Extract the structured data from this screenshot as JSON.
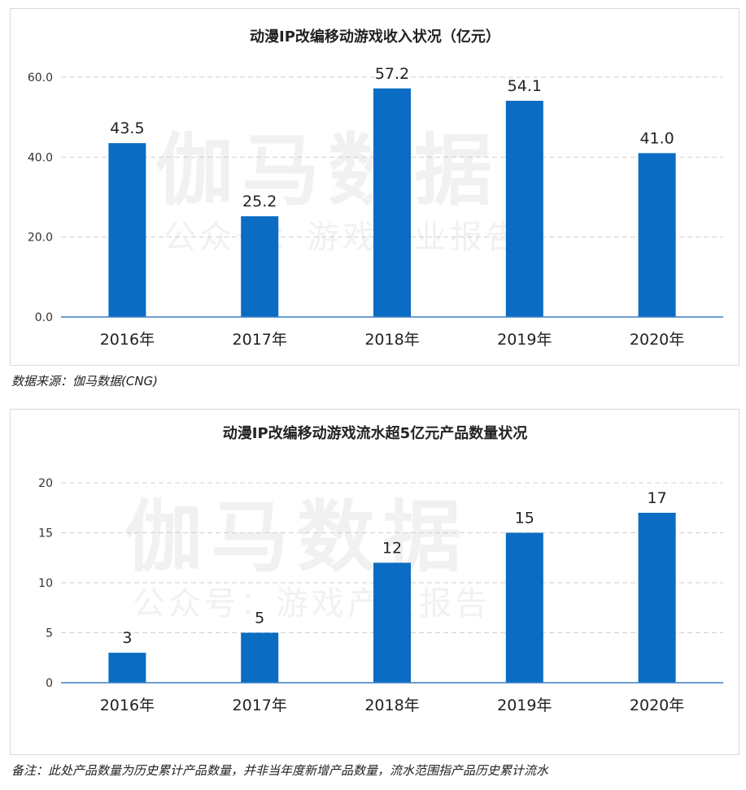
{
  "charts": {
    "c1": {
      "title": "动漫IP改编移动游戏收入状况（亿元）",
      "watermark_main": "伽马数据",
      "watermark_sub": "公众号：游戏产业报告",
      "bar_color": "#0a6cc2"
    },
    "c2": {
      "title": "动漫IP改编移动游戏流水超5亿元产品数量状况",
      "watermark_main": "伽马数据",
      "watermark_sub": "公众号：游戏产业报告",
      "bar_color": "#0a6cc2"
    }
  },
  "notes": {
    "source": "数据来源：伽马数据(CNG)",
    "remark": "备注：此处产品数量为历史累计产品数量，并非当年度新增产品数量，流水范围指产品历史累计流水"
  },
  "chart_data": [
    {
      "type": "bar",
      "title": "动漫IP改编移动游戏收入状况（亿元）",
      "categories": [
        "2016年",
        "2017年",
        "2018年",
        "2019年",
        "2020年"
      ],
      "values": [
        43.5,
        25.2,
        57.2,
        54.1,
        41.0
      ],
      "value_labels": [
        "43.5",
        "25.2",
        "57.2",
        "54.1",
        "41.0"
      ],
      "yticks": [
        "0.0",
        "20.0",
        "40.0",
        "60.0"
      ],
      "ylim": [
        0,
        60
      ],
      "grid": true,
      "xlabel": "",
      "ylabel": ""
    },
    {
      "type": "bar",
      "title": "动漫IP改编移动游戏流水超5亿元产品数量状况",
      "categories": [
        "2016年",
        "2017年",
        "2018年",
        "2019年",
        "2020年"
      ],
      "values": [
        3,
        5,
        12,
        15,
        17
      ],
      "value_labels": [
        "3",
        "5",
        "12",
        "15",
        "17"
      ],
      "yticks": [
        "0",
        "5",
        "10",
        "15",
        "20"
      ],
      "ylim": [
        0,
        20
      ],
      "grid": true,
      "xlabel": "",
      "ylabel": ""
    }
  ]
}
